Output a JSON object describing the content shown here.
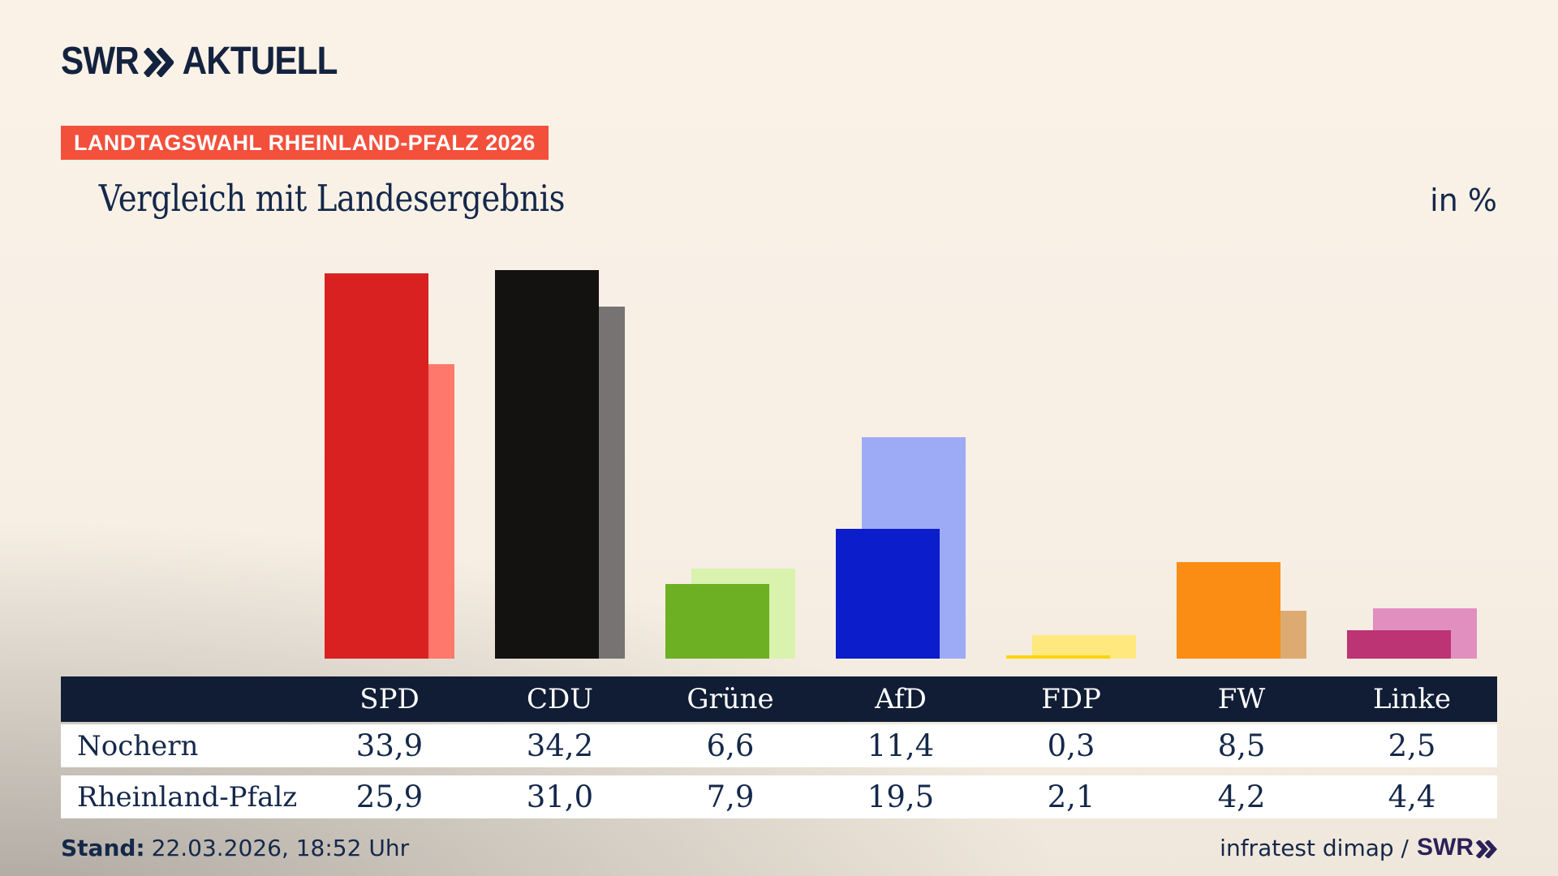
{
  "brand": {
    "logo_text": "SWR",
    "logo_suffix": "AKTUELL"
  },
  "header": {
    "badge": "LANDTAGSWAHL RHEINLAND-PFALZ 2026",
    "title": "Vergleich mit Landesergebnis",
    "unit_label": "in %"
  },
  "chart_data": {
    "type": "bar",
    "title": "Vergleich mit Landesergebnis",
    "ylabel": "in %",
    "grid": false,
    "legend_position": "table-row-labels",
    "categories": [
      "SPD",
      "CDU",
      "Grüne",
      "AfD",
      "FDP",
      "FW",
      "Linke"
    ],
    "series": [
      {
        "name": "Nochern",
        "values": [
          33.9,
          34.2,
          6.6,
          11.4,
          0.3,
          8.5,
          2.5
        ]
      },
      {
        "name": "Rheinland-Pfalz",
        "values": [
          25.9,
          31.0,
          7.9,
          19.5,
          2.1,
          4.2,
          4.4
        ]
      }
    ],
    "colors_front": [
      "#d92121",
      "#141210",
      "#6db023",
      "#0c1ecb",
      "#ffd400",
      "#fb8d15",
      "#bd3474"
    ],
    "colors_back": [
      "#ff786c",
      "#777372",
      "#d9f2ae",
      "#9dabf7",
      "#ffe87d",
      "#ddab72",
      "#e18fbe"
    ]
  },
  "table": {
    "columns": [
      "SPD",
      "CDU",
      "Grüne",
      "AfD",
      "FDP",
      "FW",
      "Linke"
    ],
    "rows": [
      {
        "label": "Nochern",
        "values": [
          "33,9",
          "34,2",
          "6,6",
          "11,4",
          "0,3",
          "8,5",
          "2,5"
        ]
      },
      {
        "label": "Rheinland-Pfalz",
        "values": [
          "25,9",
          "31,0",
          "7,9",
          "19,5",
          "2,1",
          "4,2",
          "4,4"
        ]
      }
    ]
  },
  "footer": {
    "stand_label": "Stand:",
    "stand_value": "22.03.2026, 18:52 Uhr",
    "source": "infratest dimap /",
    "source_logo": "SWR"
  },
  "colors": {
    "navy_text": "#14284a",
    "table_header_bg": "#101d35",
    "badge_bg": "#f3503c",
    "badge_text": "#ffffff",
    "footer_logo": "#2b2158",
    "row_bg": "#ffffff",
    "background_cream": "#f7efe4",
    "background_gray": "#b9b5b1"
  }
}
